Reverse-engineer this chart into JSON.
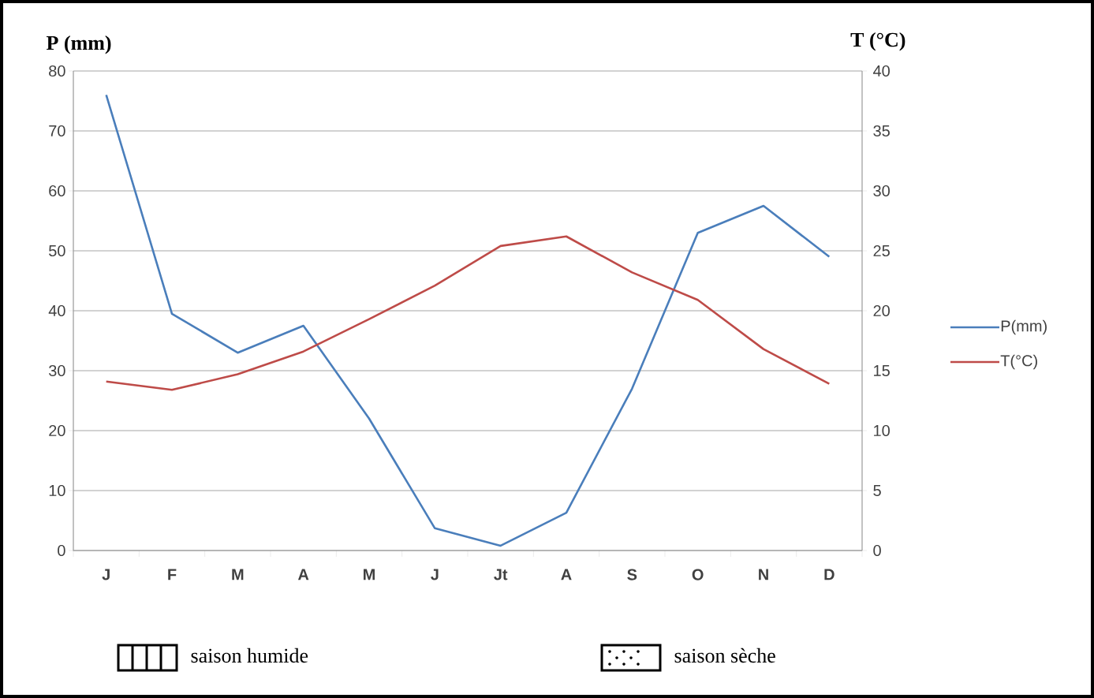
{
  "chart_data": {
    "type": "line",
    "categories": [
      "J",
      "F",
      "M",
      "A",
      "M",
      "J",
      "Jt",
      "A",
      "S",
      "O",
      "N",
      "D"
    ],
    "ylabel": "P (mm)",
    "y2label": "T (°C)",
    "ylim": [
      0,
      80
    ],
    "yticks": [
      0,
      10,
      20,
      30,
      40,
      50,
      60,
      70,
      80
    ],
    "y2lim": [
      0,
      40
    ],
    "y2ticks": [
      0,
      5,
      10,
      15,
      20,
      25,
      30,
      35,
      40
    ],
    "grid": "y",
    "legend": "right",
    "series": [
      {
        "name": "P(mm)",
        "color": "#4a7ebb",
        "values": [
          76,
          39.5,
          33,
          37.5,
          22,
          3.7,
          0.8,
          6.3,
          27,
          53,
          57.5,
          49
        ]
      },
      {
        "name": "T(°C)",
        "color": "#be4b48",
        "axis": "y2",
        "values": [
          14.1,
          13.4,
          14.7,
          16.6,
          19.3,
          22.1,
          25.4,
          26.2,
          23.2,
          20.9,
          16.8,
          13.9
        ]
      }
    ],
    "annotations": [
      "saison humide",
      "saison sèche"
    ]
  }
}
